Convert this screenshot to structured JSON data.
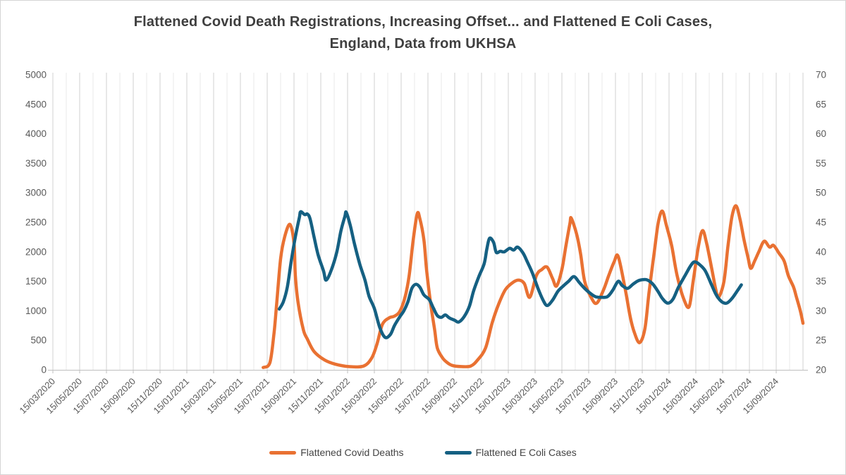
{
  "window": {
    "background": "#ffffff",
    "border_color": "#d4d4d4"
  },
  "chart": {
    "title_lines": [
      "Flattened Covid Death Registrations, Increasing Offset... and Flattened E Coli Cases,",
      "England, Data from UKHSA"
    ],
    "title_color": "#3f3f3f"
  },
  "legend": {
    "items": [
      {
        "label": "Flattened Covid Deaths",
        "color": "#E97132"
      },
      {
        "label": "Flattened E Coli Cases",
        "color": "#156082"
      }
    ]
  },
  "chart_data": {
    "type": "line",
    "title": "Flattened Covid Death Registrations, Increasing Offset... and Flattened E Coli Cases, England, Data from UKHSA",
    "grid": "vertical-monthly-only",
    "legend_position": "bottom",
    "x_axis": {
      "note": "x values in series points = months since 15/03/2020 (integer = 15th of month); gridline every month; labelled tick every 2 months",
      "tick_labels": [
        "15/03/2020",
        "15/05/2020",
        "15/07/2020",
        "15/09/2020",
        "15/11/2020",
        "15/01/2021",
        "15/03/2021",
        "15/05/2021",
        "15/07/2021",
        "15/09/2021",
        "15/11/2021",
        "15/01/2022",
        "15/03/2022",
        "15/05/2022",
        "15/07/2022",
        "15/09/2022",
        "15/11/2022",
        "15/01/2023",
        "15/03/2023",
        "15/05/2023",
        "15/07/2023",
        "15/09/2023",
        "15/11/2023",
        "15/01/2024",
        "15/03/2024",
        "15/05/2024",
        "15/07/2024",
        "15/09/2024"
      ],
      "gridline_months": 57,
      "tick_color": "#595959"
    },
    "y_axis_left": {
      "min": 0,
      "max": 5000,
      "step": 500,
      "series": "Flattened Covid Deaths",
      "tick_color": "#595959"
    },
    "y_axis_right": {
      "min": 20,
      "max": 70,
      "step": 5,
      "series": "Flattened E Coli Cases",
      "tick_color": "#595959"
    },
    "series": [
      {
        "name": "Flattened Covid Deaths",
        "axis": "left",
        "color": "#E97132",
        "points": [
          [
            15.7,
            40
          ],
          [
            16.2,
            120
          ],
          [
            16.5,
            600
          ],
          [
            16.7,
            1100
          ],
          [
            17.0,
            1880
          ],
          [
            17.3,
            2250
          ],
          [
            17.7,
            2465
          ],
          [
            18.0,
            2150
          ],
          [
            18.1,
            1600
          ],
          [
            18.3,
            1150
          ],
          [
            18.7,
            680
          ],
          [
            19.0,
            520
          ],
          [
            19.5,
            310
          ],
          [
            20.3,
            165
          ],
          [
            21.1,
            95
          ],
          [
            22.1,
            55
          ],
          [
            23.2,
            65
          ],
          [
            23.8,
            200
          ],
          [
            24.2,
            440
          ],
          [
            24.6,
            770
          ],
          [
            25.1,
            880
          ],
          [
            25.5,
            910
          ],
          [
            25.9,
            990
          ],
          [
            26.3,
            1240
          ],
          [
            26.6,
            1600
          ],
          [
            26.9,
            2200
          ],
          [
            27.2,
            2645
          ],
          [
            27.4,
            2560
          ],
          [
            27.7,
            2200
          ],
          [
            27.9,
            1690
          ],
          [
            28.2,
            1125
          ],
          [
            28.5,
            680
          ],
          [
            28.7,
            370
          ],
          [
            29.1,
            200
          ],
          [
            29.4,
            130
          ],
          [
            29.8,
            75
          ],
          [
            30.5,
            55
          ],
          [
            31.2,
            65
          ],
          [
            31.7,
            165
          ],
          [
            32.3,
            370
          ],
          [
            32.8,
            800
          ],
          [
            33.3,
            1125
          ],
          [
            33.8,
            1365
          ],
          [
            34.4,
            1490
          ],
          [
            34.8,
            1520
          ],
          [
            35.2,
            1460
          ],
          [
            35.6,
            1230
          ],
          [
            36.1,
            1600
          ],
          [
            36.5,
            1700
          ],
          [
            36.9,
            1740
          ],
          [
            37.3,
            1550
          ],
          [
            37.6,
            1420
          ],
          [
            38.0,
            1700
          ],
          [
            38.3,
            2100
          ],
          [
            38.6,
            2480
          ],
          [
            38.7,
            2570
          ],
          [
            39.1,
            2300
          ],
          [
            39.4,
            1960
          ],
          [
            39.7,
            1500
          ],
          [
            40.2,
            1220
          ],
          [
            40.6,
            1130
          ],
          [
            41.1,
            1350
          ],
          [
            41.5,
            1600
          ],
          [
            41.9,
            1830
          ],
          [
            42.2,
            1925
          ],
          [
            42.7,
            1400
          ],
          [
            43.1,
            900
          ],
          [
            43.4,
            640
          ],
          [
            43.8,
            460
          ],
          [
            44.2,
            700
          ],
          [
            44.5,
            1300
          ],
          [
            44.9,
            2000
          ],
          [
            45.2,
            2500
          ],
          [
            45.5,
            2690
          ],
          [
            45.8,
            2450
          ],
          [
            46.2,
            2100
          ],
          [
            46.6,
            1600
          ],
          [
            47.1,
            1200
          ],
          [
            47.5,
            1070
          ],
          [
            47.8,
            1500
          ],
          [
            48.2,
            2100
          ],
          [
            48.5,
            2360
          ],
          [
            48.8,
            2150
          ],
          [
            49.2,
            1700
          ],
          [
            49.5,
            1350
          ],
          [
            49.7,
            1230
          ],
          [
            50.1,
            1500
          ],
          [
            50.4,
            2100
          ],
          [
            50.7,
            2600
          ],
          [
            51.0,
            2780
          ],
          [
            51.3,
            2550
          ],
          [
            51.6,
            2200
          ],
          [
            51.9,
            1900
          ],
          [
            52.1,
            1720
          ],
          [
            52.4,
            1850
          ],
          [
            52.7,
            2000
          ],
          [
            53.1,
            2180
          ],
          [
            53.5,
            2080
          ],
          [
            53.8,
            2110
          ],
          [
            54.2,
            1980
          ],
          [
            54.6,
            1840
          ],
          [
            54.9,
            1600
          ],
          [
            55.3,
            1400
          ],
          [
            55.5,
            1240
          ],
          [
            55.8,
            1000
          ],
          [
            56.0,
            790
          ]
        ]
      },
      {
        "name": "Flattened E Coli Cases",
        "axis": "right",
        "color": "#156082",
        "points": [
          [
            16.9,
            30.3
          ],
          [
            17.2,
            31.5
          ],
          [
            17.5,
            34.0
          ],
          [
            17.8,
            38.5
          ],
          [
            18.1,
            42.5
          ],
          [
            18.4,
            45.8
          ],
          [
            18.5,
            46.8
          ],
          [
            18.8,
            46.3
          ],
          [
            19.0,
            46.4
          ],
          [
            19.2,
            45.6
          ],
          [
            19.5,
            42.5
          ],
          [
            19.8,
            39.5
          ],
          [
            20.2,
            36.8
          ],
          [
            20.4,
            35.2
          ],
          [
            20.8,
            37.0
          ],
          [
            21.2,
            40.0
          ],
          [
            21.5,
            43.5
          ],
          [
            21.8,
            46.0
          ],
          [
            21.9,
            46.7
          ],
          [
            22.2,
            44.5
          ],
          [
            22.5,
            41.5
          ],
          [
            22.9,
            38.0
          ],
          [
            23.3,
            35.2
          ],
          [
            23.6,
            32.5
          ],
          [
            24.0,
            30.4
          ],
          [
            24.4,
            27.2
          ],
          [
            24.8,
            25.5
          ],
          [
            25.2,
            26.0
          ],
          [
            25.5,
            27.5
          ],
          [
            25.9,
            29.0
          ],
          [
            26.2,
            30.0
          ],
          [
            26.5,
            31.5
          ],
          [
            26.8,
            33.8
          ],
          [
            27.1,
            34.5
          ],
          [
            27.4,
            34.0
          ],
          [
            27.7,
            32.7
          ],
          [
            28.1,
            31.9
          ],
          [
            28.4,
            30.5
          ],
          [
            28.7,
            29.2
          ],
          [
            29.0,
            28.9
          ],
          [
            29.3,
            29.3
          ],
          [
            29.6,
            28.8
          ],
          [
            30.0,
            28.4
          ],
          [
            30.3,
            28.1
          ],
          [
            30.7,
            29.0
          ],
          [
            31.1,
            30.8
          ],
          [
            31.4,
            33.3
          ],
          [
            31.8,
            35.8
          ],
          [
            32.2,
            38.0
          ],
          [
            32.4,
            40.5
          ],
          [
            32.6,
            42.3
          ],
          [
            32.9,
            41.6
          ],
          [
            33.1,
            39.9
          ],
          [
            33.4,
            40.1
          ],
          [
            33.7,
            40.0
          ],
          [
            34.1,
            40.6
          ],
          [
            34.4,
            40.3
          ],
          [
            34.7,
            40.8
          ],
          [
            35.1,
            39.8
          ],
          [
            35.4,
            38.4
          ],
          [
            35.8,
            36.4
          ],
          [
            36.2,
            33.9
          ],
          [
            36.6,
            31.8
          ],
          [
            36.9,
            30.9
          ],
          [
            37.3,
            31.8
          ],
          [
            37.7,
            33.3
          ],
          [
            38.1,
            34.2
          ],
          [
            38.5,
            35.0
          ],
          [
            38.9,
            35.8
          ],
          [
            39.3,
            34.8
          ],
          [
            39.7,
            33.8
          ],
          [
            40.1,
            33.0
          ],
          [
            40.5,
            32.4
          ],
          [
            40.9,
            32.3
          ],
          [
            41.4,
            32.4
          ],
          [
            41.8,
            33.5
          ],
          [
            42.2,
            35.0
          ],
          [
            42.5,
            34.3
          ],
          [
            42.9,
            33.8
          ],
          [
            43.3,
            34.5
          ],
          [
            43.7,
            35.1
          ],
          [
            44.1,
            35.3
          ],
          [
            44.4,
            35.2
          ],
          [
            44.8,
            34.5
          ],
          [
            45.2,
            33.2
          ],
          [
            45.5,
            32.1
          ],
          [
            45.9,
            31.3
          ],
          [
            46.3,
            32.0
          ],
          [
            46.7,
            34.0
          ],
          [
            47.2,
            36.0
          ],
          [
            47.6,
            37.6
          ],
          [
            47.9,
            38.3
          ],
          [
            48.3,
            37.8
          ],
          [
            48.7,
            36.8
          ],
          [
            49.1,
            34.8
          ],
          [
            49.5,
            32.8
          ],
          [
            49.9,
            31.6
          ],
          [
            50.3,
            31.3
          ],
          [
            50.7,
            32.1
          ],
          [
            51.1,
            33.4
          ],
          [
            51.4,
            34.4
          ]
        ]
      }
    ]
  }
}
